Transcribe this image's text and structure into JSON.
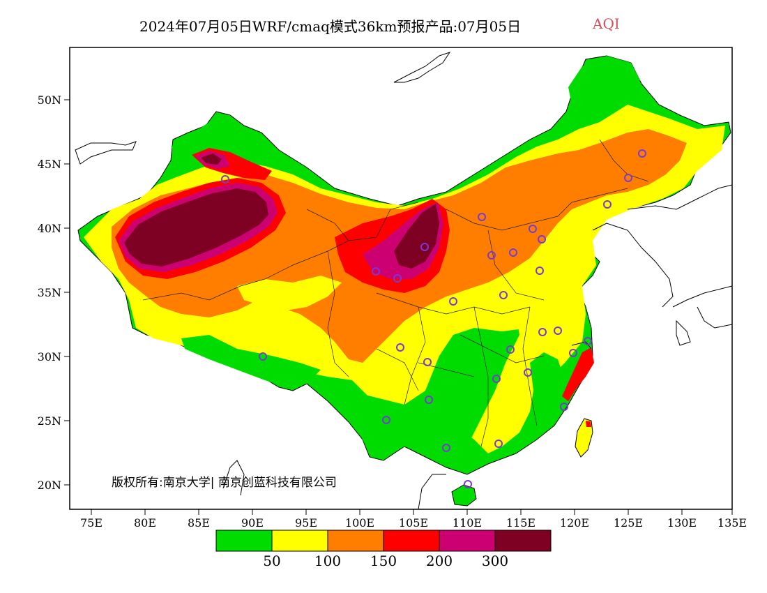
{
  "title": {
    "main": "2024年07月05日WRF/cmaq模式36km预报产品:07月05日",
    "tag": "AQI"
  },
  "axes": {
    "lat_labels": [
      "50N",
      "45N",
      "40N",
      "35N",
      "30N",
      "25N",
      "20N"
    ],
    "lon_labels": [
      "75E",
      "80E",
      "85E",
      "90E",
      "95E",
      "100E",
      "105E",
      "110E",
      "115E",
      "120E",
      "125E",
      "130E",
      "135E"
    ]
  },
  "copyright": "版权所有:南京大学| 南京创蓝科技有限公司",
  "legend": {
    "colors": [
      "#00dc00",
      "#ffff00",
      "#ff7e00",
      "#ff0000",
      "#cc0070",
      "#7e0023"
    ],
    "labels": [
      "50",
      "100",
      "150",
      "200",
      "300"
    ]
  },
  "colors": {
    "good": "#00dc00",
    "moderate": "#ffff00",
    "usg": "#ff7e00",
    "unhealthy": "#ff0000",
    "very_unhealthy": "#cc0070",
    "hazardous": "#7e0023",
    "station_marker": "#7a38d6"
  }
}
